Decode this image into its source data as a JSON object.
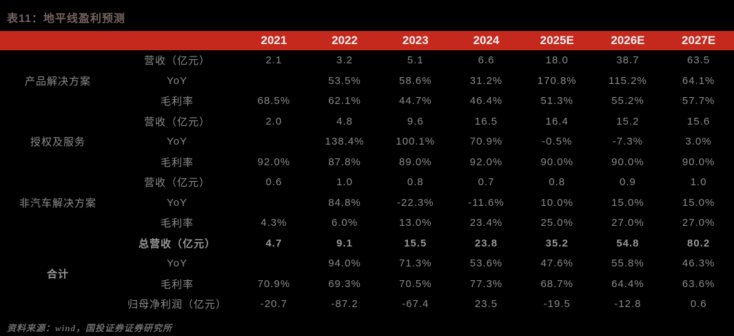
{
  "title": "表11：地平线盈利预测",
  "source": "资料来源：wind，国投证券证券研究所",
  "colors": {
    "page_background": "#000000",
    "header_band": "#c5281c",
    "header_text": "#f2f2f2",
    "body_text": "#8b8b8b",
    "title_text": "#756360"
  },
  "table": {
    "year_columns": [
      "2021",
      "2022",
      "2023",
      "2024",
      "2025E",
      "2026E",
      "2027E"
    ],
    "groups": [
      {
        "name": "产品解决方案",
        "rows": [
          {
            "label": "营收（亿元）",
            "bold": false,
            "values": [
              "2.1",
              "3.2",
              "5.1",
              "6.6",
              "18.0",
              "38.7",
              "63.5"
            ]
          },
          {
            "label": "YoY",
            "bold": false,
            "values": [
              "",
              "53.5%",
              "58.6%",
              "31.2%",
              "170.8%",
              "115.2%",
              "64.1%"
            ]
          },
          {
            "label": "毛利率",
            "bold": false,
            "values": [
              "68.5%",
              "62.1%",
              "44.7%",
              "46.4%",
              "51.3%",
              "55.2%",
              "57.7%"
            ]
          }
        ]
      },
      {
        "name": "授权及服务",
        "rows": [
          {
            "label": "营收（亿元）",
            "bold": false,
            "values": [
              "2.0",
              "4.8",
              "9.6",
              "16.5",
              "16.4",
              "15.2",
              "15.6"
            ]
          },
          {
            "label": "YoY",
            "bold": false,
            "values": [
              "",
              "138.4%",
              "100.1%",
              "70.9%",
              "-0.5%",
              "-7.3%",
              "3.0%"
            ]
          },
          {
            "label": "毛利率",
            "bold": false,
            "values": [
              "92.0%",
              "87.8%",
              "89.0%",
              "92.0%",
              "90.0%",
              "90.0%",
              "90.0%"
            ]
          }
        ]
      },
      {
        "name": "非汽车解决方案",
        "rows": [
          {
            "label": "营收（亿元）",
            "bold": false,
            "values": [
              "0.6",
              "1.0",
              "0.8",
              "0.7",
              "0.8",
              "0.9",
              "1.0"
            ]
          },
          {
            "label": "YoY",
            "bold": false,
            "values": [
              "",
              "84.8%",
              "-22.3%",
              "-11.6%",
              "10.0%",
              "15.0%",
              "15.0%"
            ]
          },
          {
            "label": "毛利率",
            "bold": false,
            "values": [
              "4.3%",
              "6.0%",
              "13.0%",
              "23.4%",
              "25.0%",
              "27.0%",
              "27.0%"
            ]
          }
        ]
      },
      {
        "name": "合计",
        "rows": [
          {
            "label": "总营收（亿元）",
            "bold": true,
            "values": [
              "4.7",
              "9.1",
              "15.5",
              "23.8",
              "35.2",
              "54.8",
              "80.2"
            ]
          },
          {
            "label": "YoY",
            "bold": false,
            "values": [
              "",
              "94.0%",
              "71.3%",
              "53.6%",
              "47.6%",
              "55.8%",
              "46.3%"
            ]
          },
          {
            "label": "毛利率",
            "bold": false,
            "values": [
              "70.9%",
              "69.3%",
              "70.5%",
              "77.3%",
              "68.7%",
              "64.4%",
              "63.6%"
            ]
          },
          {
            "label": "归母净利润（亿元）",
            "bold": false,
            "values": [
              "-20.7",
              "-87.2",
              "-67.4",
              "23.5",
              "-19.5",
              "-12.8",
              "0.6"
            ]
          }
        ]
      }
    ]
  }
}
